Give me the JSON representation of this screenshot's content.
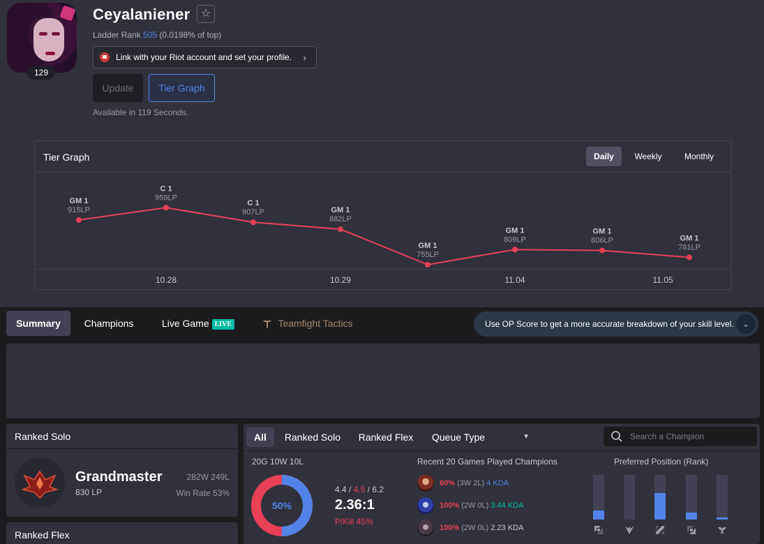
{
  "profile": {
    "name": "Ceyalaniener",
    "level": "129",
    "ladder_prefix": "Ladder Rank ",
    "ladder_rank": "505",
    "ladder_suffix": " (0.0198% of top)",
    "riot_link": "Link with your Riot account and set your profile.",
    "update_label": "Update",
    "tier_graph_label": "Tier Graph",
    "available": "Available in 119 Seconds."
  },
  "tier_graph": {
    "title": "Tier Graph",
    "periods": [
      "Daily",
      "Weekly",
      "Monthly"
    ],
    "active_period": "Daily",
    "line_color": "#e84057"
  },
  "chart_data": {
    "type": "line",
    "title": "Tier Graph",
    "x_tick_labels": [
      "10.28",
      "10.29",
      "11.04",
      "11.05"
    ],
    "points": [
      {
        "tier": "GM 1",
        "lp": 915,
        "lp_label": "915LP"
      },
      {
        "tier": "C 1",
        "lp": 959,
        "lp_label": "959LP"
      },
      {
        "tier": "C 1",
        "lp": 907,
        "lp_label": "907LP"
      },
      {
        "tier": "GM 1",
        "lp": 882,
        "lp_label": "882LP"
      },
      {
        "tier": "GM 1",
        "lp": 755,
        "lp_label": "755LP"
      },
      {
        "tier": "GM 1",
        "lp": 809,
        "lp_label": "809LP"
      },
      {
        "tier": "GM 1",
        "lp": 806,
        "lp_label": "806LP"
      },
      {
        "tier": "GM 1",
        "lp": 781,
        "lp_label": "781LP"
      }
    ],
    "ylim": [
      740,
      975
    ]
  },
  "tabs": {
    "summary": "Summary",
    "champions": "Champions",
    "live_game": "Live Game",
    "live_badge": "LIVE",
    "tft": "Teamfight Tactics"
  },
  "opscore_banner": "Use OP Score to get a more accurate breakdown of your skill level.",
  "ranked_solo": {
    "title": "Ranked Solo",
    "tier": "Grandmaster",
    "lp": "830 LP",
    "wl": "282W 249L",
    "win_rate": "Win Rate 53%"
  },
  "ranked_flex": {
    "title": "Ranked Flex"
  },
  "stats": {
    "tabs": [
      "All",
      "Ranked Solo",
      "Ranked Flex"
    ],
    "queue_type": "Queue Type",
    "search_placeholder": "Search a Champion",
    "summary": "20G 10W 10L",
    "win_pct": 50,
    "win_pct_label": "50%",
    "kda_k": "4.4",
    "kda_sep1": " / ",
    "kda_d": "4.5",
    "kda_sep2": " / ",
    "kda_a": "6.2",
    "kda_ratio": "2.36:1",
    "pkill": "P/Kill 45%",
    "win_color": "#5383e8",
    "loss_color": "#e84057"
  },
  "recent_champions": {
    "title": "Recent 20 Games Played Champions",
    "rows": [
      {
        "wr": "60%",
        "record": " (3W 2L) ",
        "kda": "4 KDA",
        "kda_class": "kda-blue"
      },
      {
        "wr": "100%",
        "record": " (2W 0L) ",
        "kda": "3.44 KDA",
        "kda_class": "kda-green"
      },
      {
        "wr": "100%",
        "record": " (2W 0L) ",
        "kda": "2.23 KDA",
        "kda_class": "kda-plain"
      }
    ]
  },
  "positions": {
    "title": "Preferred Position (Rank)",
    "items": [
      {
        "icon": "top-icon",
        "fraction": 0.2
      },
      {
        "icon": "jungle-icon",
        "fraction": 0.0
      },
      {
        "icon": "mid-icon",
        "fraction": 0.6
      },
      {
        "icon": "adc-icon",
        "fraction": 0.15
      },
      {
        "icon": "support-icon",
        "fraction": 0.05
      }
    ]
  }
}
